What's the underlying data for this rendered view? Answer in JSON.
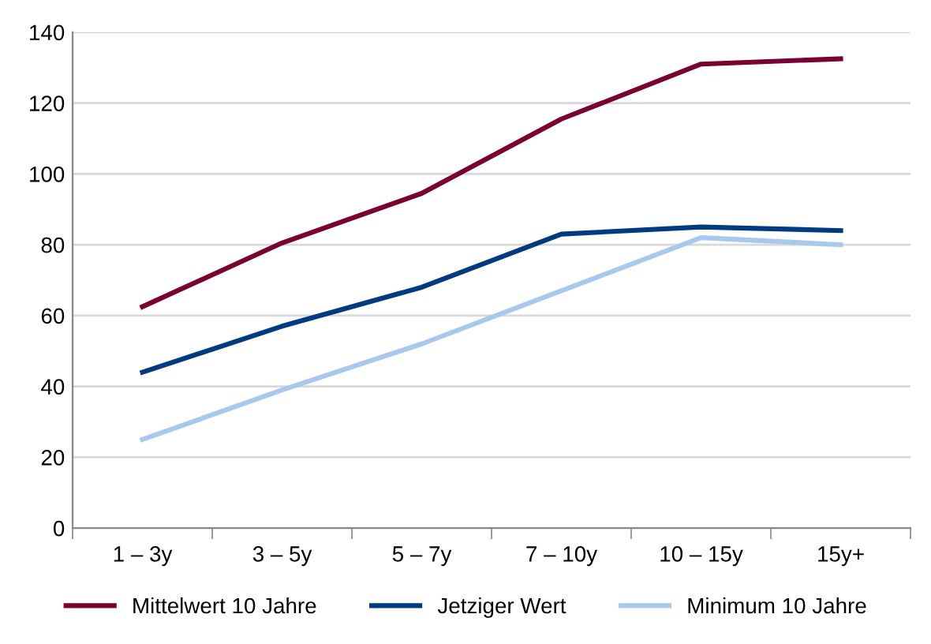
{
  "chart_data": {
    "type": "line",
    "categories": [
      "1 – 3y",
      "3 – 5y",
      "5 – 7y",
      "7 – 10y",
      "10 – 15y",
      "15y+"
    ],
    "series": [
      {
        "name": "Mittelwert 10 Jahre",
        "color": "#7b0032",
        "values": [
          62.5,
          80.5,
          94.5,
          115.5,
          131,
          132.5
        ]
      },
      {
        "name": "Jetziger Wert",
        "color": "#003a80",
        "values": [
          44,
          57,
          68,
          83,
          85,
          84
        ]
      },
      {
        "name": "Minimum 10 Jahre",
        "color": "#a9c8ee",
        "values": [
          25,
          39,
          52,
          67,
          82,
          80
        ]
      }
    ],
    "ylim": [
      0,
      140
    ],
    "yticks": [
      0,
      20,
      40,
      60,
      80,
      100,
      120,
      140
    ],
    "grid": "y",
    "legend": "bottom",
    "marker": "none",
    "line_style": "solid"
  }
}
